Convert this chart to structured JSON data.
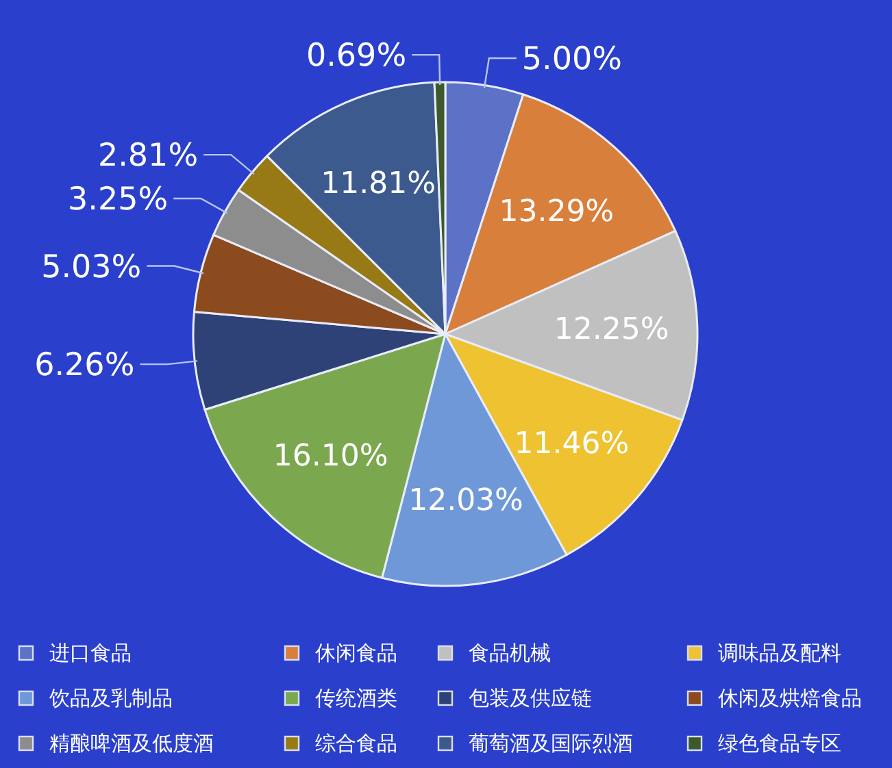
{
  "chart_data": {
    "type": "pie",
    "categories": [
      "进口食品",
      "休闲食品",
      "食品机械",
      "调味品及配料",
      "饮品及乳制品",
      "传统酒类",
      "包装及供应链",
      "休闲及烘焙食品",
      "精酿啤酒及低度酒",
      "综合食品",
      "葡萄酒及国际烈酒",
      "绿色食品专区"
    ],
    "values": [
      5.0,
      13.29,
      12.25,
      11.46,
      12.03,
      16.1,
      6.26,
      5.03,
      3.25,
      2.81,
      11.81,
      0.69
    ],
    "colors": [
      "#5b72c6",
      "#d97f3c",
      "#c0c0c0",
      "#eec230",
      "#6f98d8",
      "#7ba84e",
      "#2f4277",
      "#8c4a1f",
      "#8d8d8d",
      "#977a15",
      "#3c5a8e",
      "#3e5a2c"
    ],
    "value_labels": [
      "5.00%",
      "13.29%",
      "12.25%",
      "11.46%",
      "12.03%",
      "16.10%",
      "6.26%",
      "5.03%",
      "3.25%",
      "2.81%",
      "11.81%",
      "0.69%"
    ],
    "legend": "bottom"
  }
}
